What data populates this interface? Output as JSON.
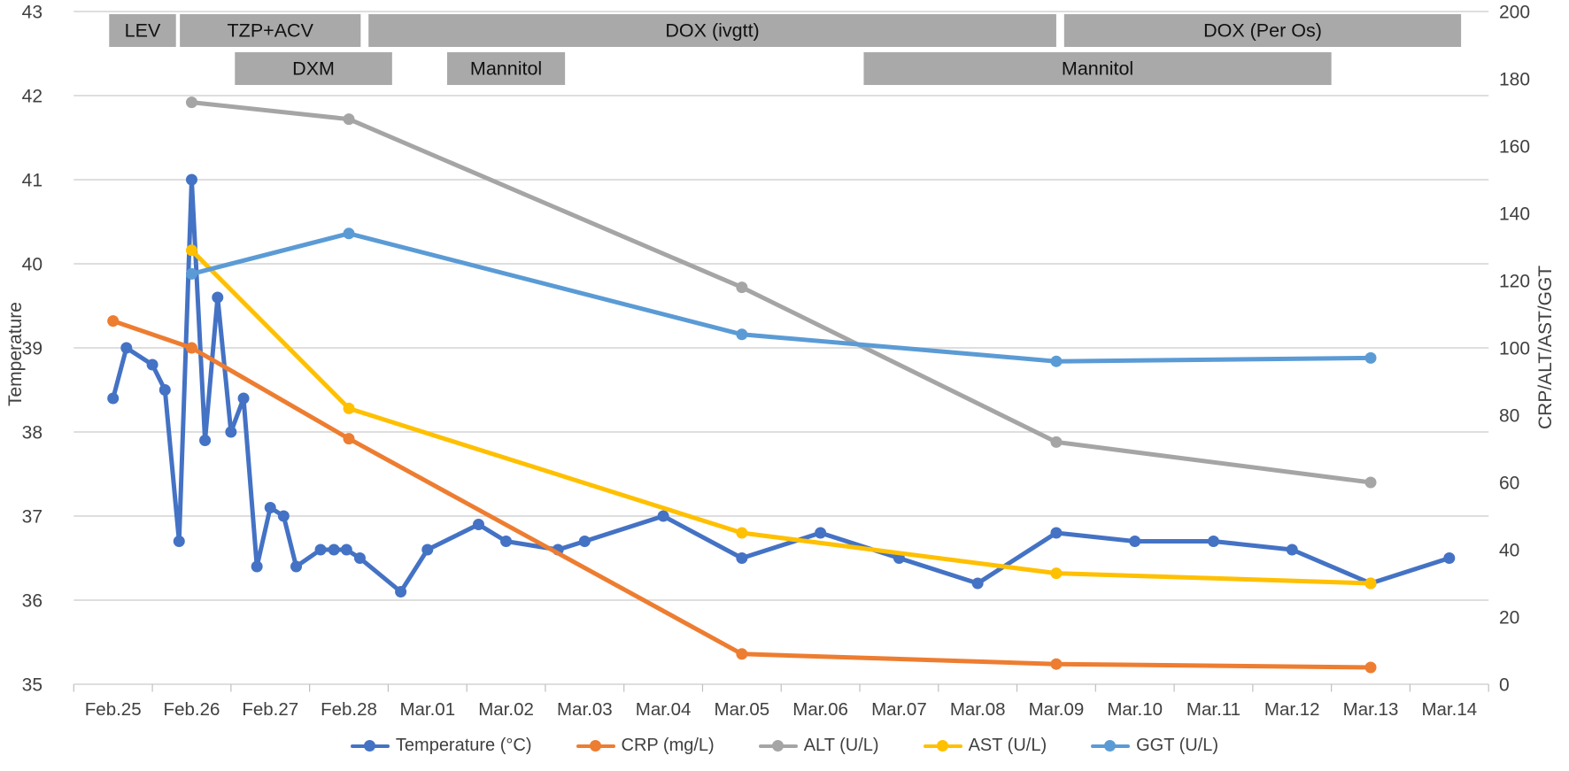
{
  "chart_data": {
    "type": "line",
    "title": "",
    "categories": [
      "Feb.25",
      "Feb.26",
      "Feb.27",
      "Feb.28",
      "Mar.01",
      "Mar.02",
      "Mar.03",
      "Mar.04",
      "Mar.05",
      "Mar.06",
      "Mar.07",
      "Mar.08",
      "Mar.09",
      "Mar.10",
      "Mar.11",
      "Mar.12",
      "Mar.13",
      "Mar.14"
    ],
    "left_axis": {
      "label": "Temperature",
      "min": 35,
      "max": 43,
      "tick_labels": [
        "43",
        "42",
        "41",
        "40",
        "39",
        "38",
        "37",
        "36",
        "35"
      ]
    },
    "right_axis": {
      "label": "CRP/ALT/AST/GGT",
      "min": 0,
      "max": 200,
      "tick_labels": [
        "200",
        "180",
        "160",
        "140",
        "120",
        "100",
        "80",
        "60",
        "40",
        "20",
        "0"
      ]
    },
    "grid": "horizontal",
    "legend_position": "bottom",
    "series": [
      {
        "key": "temperature",
        "name": "Temperature (°C)",
        "axis": "left",
        "color": "#4472C4",
        "points": [
          [
            0,
            38.4
          ],
          [
            0.17,
            39.0
          ],
          [
            0.5,
            38.8
          ],
          [
            0.66,
            38.5
          ],
          [
            0.84,
            36.7
          ],
          [
            1,
            41.0
          ],
          [
            1.17,
            37.9
          ],
          [
            1.33,
            39.6
          ],
          [
            1.5,
            38.0
          ],
          [
            1.66,
            38.4
          ],
          [
            1.83,
            36.4
          ],
          [
            2,
            37.1
          ],
          [
            2.17,
            37.0
          ],
          [
            2.33,
            36.4
          ],
          [
            2.64,
            36.6
          ],
          [
            2.81,
            36.6
          ],
          [
            2.97,
            36.6
          ],
          [
            3.14,
            36.5
          ],
          [
            3.66,
            36.1
          ],
          [
            4,
            36.6
          ],
          [
            4.65,
            36.9
          ],
          [
            5,
            36.7
          ],
          [
            5.66,
            36.6
          ],
          [
            6,
            36.7
          ],
          [
            7,
            37.0
          ],
          [
            8,
            36.5
          ],
          [
            9,
            36.8
          ],
          [
            10,
            36.5
          ],
          [
            11,
            36.2
          ],
          [
            12,
            36.8
          ],
          [
            13,
            36.7
          ],
          [
            14,
            36.7
          ],
          [
            15,
            36.6
          ],
          [
            16,
            36.2
          ],
          [
            17,
            36.5
          ]
        ]
      },
      {
        "key": "crp",
        "name": "CRP (mg/L)",
        "axis": "right",
        "color": "#ED7D31",
        "points": [
          [
            0,
            108
          ],
          [
            1,
            100
          ],
          [
            3,
            73
          ],
          [
            8,
            9
          ],
          [
            12,
            6
          ],
          [
            16,
            5
          ]
        ]
      },
      {
        "key": "alt",
        "name": "ALT (U/L)",
        "axis": "right",
        "color": "#A5A5A5",
        "points": [
          [
            1,
            173
          ],
          [
            3,
            168
          ],
          [
            8,
            118
          ],
          [
            12,
            72
          ],
          [
            16,
            60
          ]
        ]
      },
      {
        "key": "ast",
        "name": "AST (U/L)",
        "axis": "right",
        "color": "#FFC000",
        "points": [
          [
            1,
            129
          ],
          [
            3,
            82
          ],
          [
            8,
            45
          ],
          [
            12,
            33
          ],
          [
            16,
            30
          ]
        ]
      },
      {
        "key": "ggt",
        "name": "GGT (U/L)",
        "axis": "right",
        "color": "#5B9BD5",
        "points": [
          [
            1,
            122
          ],
          [
            3,
            134
          ],
          [
            8,
            104
          ],
          [
            12,
            96
          ],
          [
            16,
            97
          ]
        ]
      }
    ],
    "medications": [
      {
        "label": "LEV",
        "row": 1,
        "start": -0.05,
        "end": 0.8
      },
      {
        "label": "TZP+ACV",
        "row": 1,
        "start": 0.85,
        "end": 3.15
      },
      {
        "label": "DOX (ivgtt)",
        "row": 1,
        "start": 3.25,
        "end": 12.0
      },
      {
        "label": "DOX (Per Os)",
        "row": 1,
        "start": 12.1,
        "end": 17.15
      },
      {
        "label": "DXM",
        "row": 2,
        "start": 1.55,
        "end": 3.55
      },
      {
        "label": "Mannitol",
        "row": 2,
        "start": 4.25,
        "end": 5.75
      },
      {
        "label": "Mannitol",
        "row": 2,
        "start": 9.55,
        "end": 15.5
      }
    ],
    "style": {
      "medication_bar_color": "#A9A9A9",
      "gridline_color": "#D9D9D9",
      "tick_color": "#BFBFBF",
      "axis_text_color": "#404040",
      "bar_label_color": "#111111",
      "background": "#FFFFFF"
    }
  }
}
